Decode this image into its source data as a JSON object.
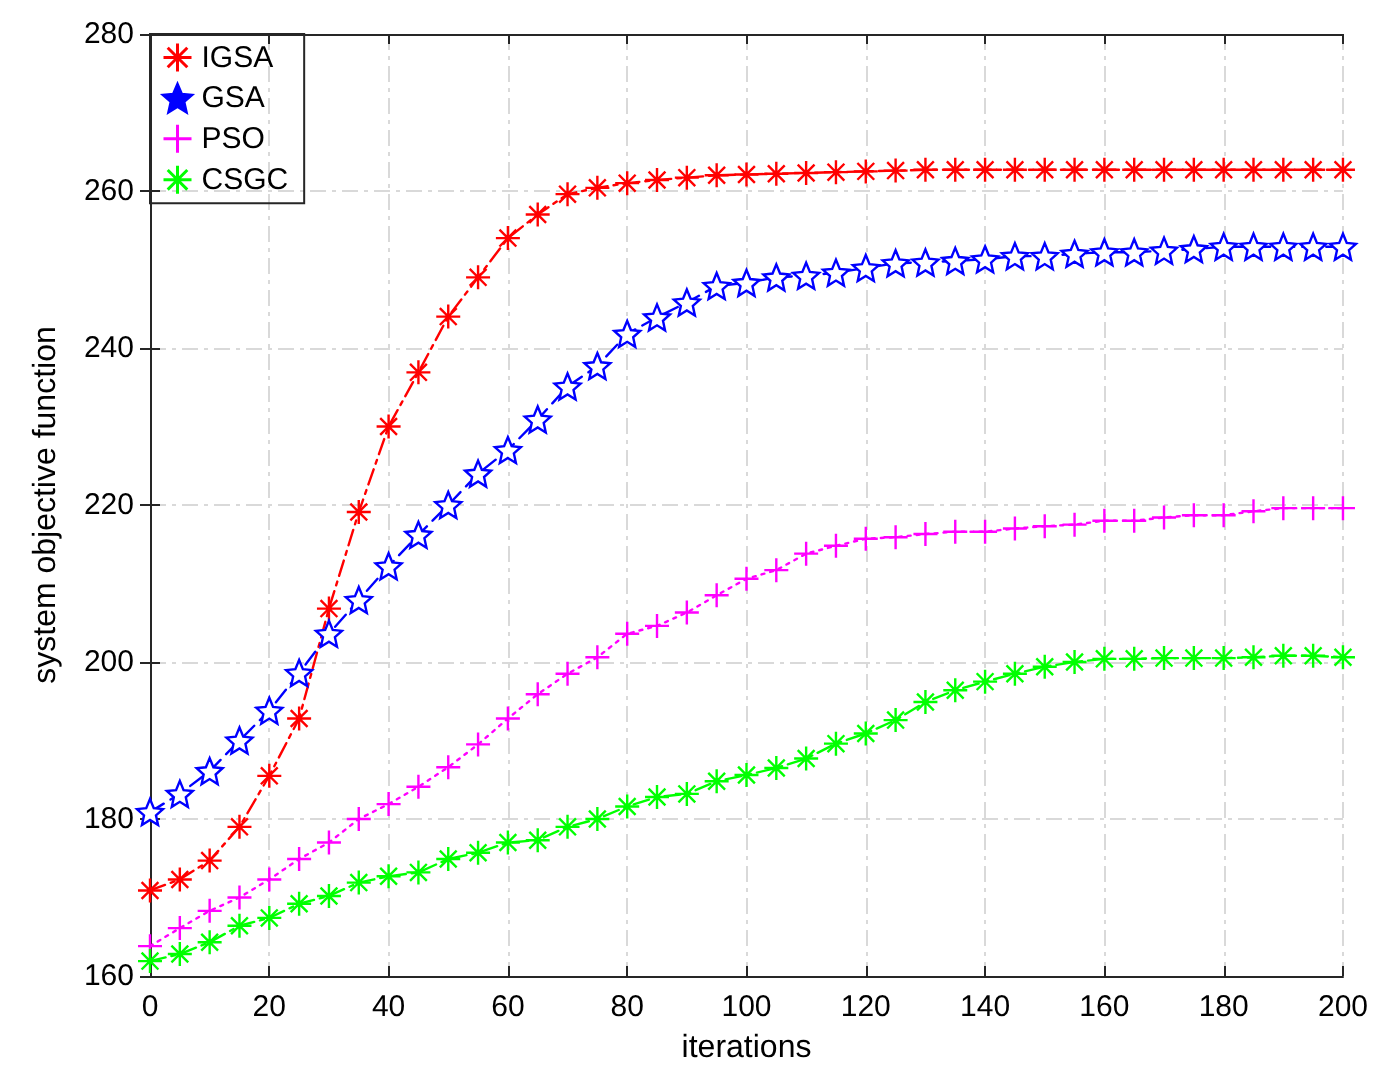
{
  "chart_data": {
    "type": "line",
    "xlabel": "iterations",
    "ylabel": "system objective function",
    "x": [
      0,
      5,
      10,
      15,
      20,
      25,
      30,
      35,
      40,
      45,
      50,
      55,
      60,
      65,
      70,
      75,
      80,
      85,
      90,
      95,
      100,
      105,
      110,
      115,
      120,
      125,
      130,
      135,
      140,
      145,
      150,
      155,
      160,
      165,
      170,
      175,
      180,
      185,
      190,
      195,
      200
    ],
    "xlim": [
      0,
      200
    ],
    "xticks": [
      0,
      20,
      40,
      60,
      80,
      100,
      120,
      140,
      160,
      180,
      200
    ],
    "ylim": [
      160,
      280
    ],
    "yticks": [
      160,
      180,
      200,
      220,
      240,
      260,
      280
    ],
    "grid": true,
    "legend": "top left",
    "series": [
      {
        "name": "IGSA",
        "color": "#ff0000",
        "marker": "cross",
        "line_style": "dashdot",
        "values": [
          170.9,
          172.3,
          174.7,
          179,
          185.5,
          192.8,
          206.8,
          219.1,
          230,
          236.9,
          244,
          249,
          254,
          257,
          259.6,
          260.4,
          261,
          261.4,
          261.7,
          262,
          262.1,
          262.2,
          262.3,
          262.4,
          262.5,
          262.6,
          262.7,
          262.7,
          262.7,
          262.7,
          262.7,
          262.7,
          262.7,
          262.7,
          262.7,
          262.7,
          262.7,
          262.7,
          262.7,
          262.7,
          262.7
        ]
      },
      {
        "name": "GSA",
        "color": "#0000ff",
        "marker": "star",
        "line_style": "dashed",
        "values": [
          180.9,
          183.2,
          186.1,
          190,
          193.8,
          198.6,
          203.6,
          207.9,
          212.2,
          216.2,
          220,
          224,
          227,
          230.9,
          235.1,
          237.7,
          241.8,
          243.9,
          245.8,
          247.9,
          248.3,
          249,
          249.2,
          249.6,
          250.2,
          250.8,
          250.9,
          251.1,
          251.3,
          251.7,
          251.7,
          252,
          252.2,
          252.2,
          252.4,
          252.6,
          252.9,
          252.9,
          252.9,
          252.9,
          252.9
        ]
      },
      {
        "name": "PSO",
        "color": "#ff00ff",
        "marker": "plus",
        "line_style": "dotted",
        "values": [
          163.8,
          166.1,
          168.3,
          170,
          172.3,
          174.9,
          177,
          180,
          181.9,
          184.1,
          186.6,
          189.5,
          192.8,
          195.9,
          198.5,
          200.6,
          203.6,
          204.6,
          206.3,
          208.5,
          210.6,
          211.7,
          213.8,
          214.8,
          215.7,
          215.9,
          216.3,
          216.6,
          216.6,
          217,
          217.3,
          217.5,
          218,
          218,
          218.4,
          218.7,
          218.7,
          219.2,
          219.6,
          219.6,
          219.6
        ]
      },
      {
        "name": "CSGC",
        "color": "#00ff00",
        "marker": "cross",
        "line_style": "dashdot",
        "values": [
          161.9,
          162.8,
          164.3,
          166.4,
          167.4,
          169.2,
          170.2,
          171.9,
          172.7,
          173.2,
          174.9,
          175.7,
          177,
          177.3,
          179,
          180,
          181.6,
          182.8,
          183.2,
          184.8,
          185.6,
          186.5,
          187.7,
          189.6,
          190.9,
          192.6,
          194.9,
          196.4,
          197.5,
          198.5,
          199.4,
          200,
          200.4,
          200.4,
          200.5,
          200.5,
          200.5,
          200.6,
          200.8,
          200.8,
          200.6
        ]
      }
    ]
  }
}
